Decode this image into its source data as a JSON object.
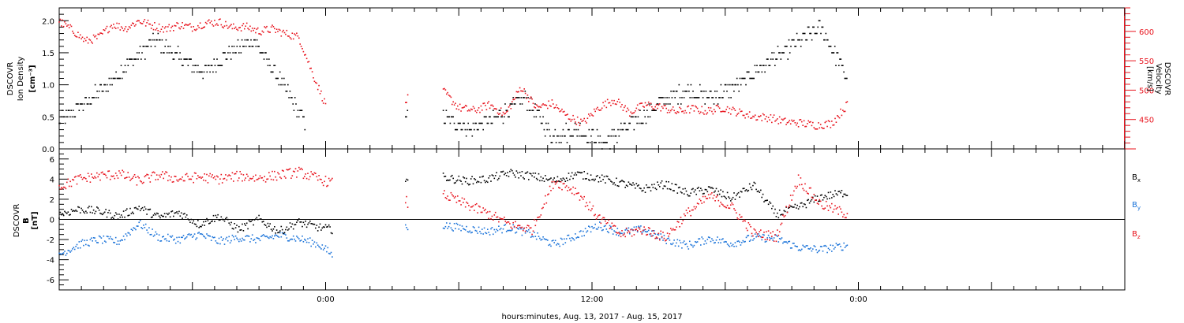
{
  "chart_data": [
    {
      "type": "scatter",
      "panel": "plasma",
      "ylabel_left": [
        "DSCOVR",
        "Ion Density",
        "[cm⁻³]"
      ],
      "ylabel_right": [
        "DSCOVR",
        "Velocity",
        "[km/s]"
      ],
      "ylim_left": [
        0.0,
        2.2
      ],
      "yticks_left": [
        "0.0",
        "0.5",
        "1.0",
        "1.5",
        "2.0"
      ],
      "ylim_right": [
        400,
        640
      ],
      "yticks_right": [
        "450",
        "500",
        "550",
        "600"
      ],
      "series": [
        {
          "name": "Ion Density",
          "axis": "left",
          "color": "#000000",
          "segments": [
            {
              "x": [
                0,
                1.1,
                2.2,
                3.3,
                4.4,
                5.5,
                6.6,
                7.7,
                8.8,
                9.9,
                11.1
              ],
              "y": [
                0.4,
                0.7,
                1.0,
                1.4,
                1.7,
                1.4,
                1.2,
                1.5,
                1.7,
                1.1,
                0.4
              ]
            },
            {
              "x": [
                15.6,
                15.7
              ],
              "y": [
                0.6,
                0.5
              ]
            },
            {
              "x": [
                17.3,
                18.5,
                19.8,
                21.0,
                22.2,
                23.4,
                24.6,
                25.8,
                27.0,
                28.2,
                29.4,
                30.6,
                31.8,
                33.0,
                34.3,
                35.5
              ],
              "y": [
                0.5,
                0.3,
                0.5,
                0.8,
                0.2,
                0.3,
                0.1,
                0.4,
                0.7,
                0.9,
                0.8,
                1.0,
                1.3,
                1.6,
                1.9,
                1.1
              ]
            }
          ]
        },
        {
          "name": "Velocity",
          "axis": "right",
          "color": "#e8141e",
          "segments": [
            {
              "x": [
                0,
                0.6,
                1.2,
                1.8,
                2.4,
                3.0,
                3.6,
                4.2,
                4.8,
                5.4,
                6.0,
                6.6,
                7.2,
                7.8,
                8.4,
                9.0,
                9.6,
                10.2,
                10.8,
                11.4,
                12.0
              ],
              "y": [
                617,
                602,
                583,
                590,
                612,
                605,
                618,
                610,
                604,
                611,
                607,
                614,
                616,
                606,
                608,
                600,
                604,
                596,
                590,
                530,
                475
              ]
            },
            {
              "x": [
                15.6,
                15.7
              ],
              "y": [
                480,
                485
              ]
            },
            {
              "x": [
                17.3,
                18.0,
                18.7,
                19.4,
                20.1,
                20.8,
                21.5,
                22.2,
                22.9,
                23.6,
                24.3,
                25.0,
                25.7,
                26.4,
                27.1,
                27.8,
                28.5,
                29.2,
                29.9,
                30.6,
                31.3,
                32.0,
                32.7,
                33.4,
                34.1,
                34.8,
                35.5
              ],
              "y": [
                498,
                470,
                465,
                475,
                458,
                505,
                470,
                477,
                455,
                444,
                470,
                484,
                462,
                475,
                471,
                463,
                468,
                464,
                470,
                462,
                455,
                453,
                446,
                444,
                440,
                443,
                475
              ]
            }
          ]
        }
      ]
    },
    {
      "type": "scatter",
      "panel": "magnetic-field",
      "ylabel_left": [
        "DSCOVR",
        "B",
        "[nT]"
      ],
      "ylim": [
        -7,
        7
      ],
      "yticks": [
        "-6",
        "-4",
        "-2",
        "0",
        "2",
        "4",
        "6"
      ],
      "zero_line": true,
      "legend": [
        "Bx",
        "By",
        "Bz"
      ],
      "legend_placement": "right",
      "series": [
        {
          "name": "Bx",
          "color": "#000000",
          "segments": [
            {
              "x": [
                0,
                0.9,
                1.8,
                2.7,
                3.6,
                4.5,
                5.4,
                6.3,
                7.2,
                8.1,
                9.0,
                9.9,
                10.8,
                11.7,
                12.3
              ],
              "y": [
                0.5,
                1.0,
                0.8,
                0.3,
                1.2,
                0.2,
                0.7,
                -0.5,
                0.3,
                -1.0,
                0.0,
                -1.2,
                -0.3,
                -0.8,
                -1.0
              ]
            },
            {
              "x": [
                15.6,
                15.7
              ],
              "y": [
                4.0,
                3.9
              ]
            },
            {
              "x": [
                17.3,
                18.3,
                19.3,
                20.3,
                21.3,
                22.3,
                23.3,
                24.3,
                25.3,
                26.3,
                27.3,
                28.3,
                29.3,
                30.3,
                31.3,
                32.3,
                33.3,
                34.3,
                35.5
              ],
              "y": [
                4.2,
                3.8,
                4.0,
                4.6,
                4.3,
                3.8,
                4.5,
                4.1,
                3.6,
                3.0,
                3.5,
                2.6,
                3.0,
                2.1,
                3.4,
                0.5,
                1.2,
                2.2,
                2.7
              ]
            }
          ]
        },
        {
          "name": "By",
          "color": "#1a73d9",
          "segments": [
            {
              "x": [
                0,
                0.9,
                1.8,
                2.7,
                3.6,
                4.5,
                5.4,
                6.3,
                7.2,
                8.1,
                9.0,
                9.9,
                10.8,
                11.7,
                12.3
              ],
              "y": [
                -3.5,
                -2.5,
                -2.0,
                -2.2,
                -0.4,
                -1.8,
                -2.0,
                -1.5,
                -2.2,
                -1.8,
                -2.0,
                -1.6,
                -1.9,
                -2.5,
                -3.5
              ]
            },
            {
              "x": [
                15.6,
                15.7
              ],
              "y": [
                -0.8,
                -0.7
              ]
            },
            {
              "x": [
                17.3,
                18.3,
                19.3,
                20.3,
                21.3,
                22.3,
                23.3,
                24.3,
                25.3,
                26.3,
                27.3,
                28.3,
                29.3,
                30.3,
                31.3,
                32.3,
                33.3,
                34.3,
                35.5
              ],
              "y": [
                -0.6,
                -0.9,
                -1.2,
                -0.8,
                -1.5,
                -2.5,
                -1.6,
                -0.6,
                -1.3,
                -1.0,
                -2.0,
                -2.6,
                -1.9,
                -2.4,
                -1.8,
                -1.9,
                -2.8,
                -3.0,
                -2.6
              ]
            }
          ]
        },
        {
          "name": "Bz",
          "color": "#e8141e",
          "segments": [
            {
              "x": [
                0,
                0.9,
                1.8,
                2.7,
                3.6,
                4.5,
                5.4,
                6.3,
                7.2,
                8.1,
                9.0,
                9.9,
                10.8,
                11.7,
                12.3
              ],
              "y": [
                3.2,
                4.0,
                4.3,
                4.5,
                3.8,
                4.4,
                4.0,
                4.2,
                4.0,
                4.3,
                4.1,
                4.4,
                4.7,
                4.0,
                3.6
              ]
            },
            {
              "x": [
                15.6,
                15.7
              ],
              "y": [
                2.0,
                1.6
              ]
            },
            {
              "x": [
                17.3,
                18.3,
                19.3,
                20.3,
                21.3,
                22.3,
                23.3,
                24.3,
                25.3,
                26.3,
                27.3,
                28.3,
                29.3,
                30.3,
                31.3,
                32.3,
                33.3,
                34.3,
                35.5
              ],
              "y": [
                2.5,
                1.5,
                0.6,
                -0.5,
                -1.0,
                3.8,
                2.8,
                0.2,
                -1.5,
                -1.0,
                -1.8,
                0.6,
                2.3,
                1.2,
                -1.4,
                -1.7,
                4.0,
                1.5,
                0.5
              ]
            }
          ]
        }
      ]
    }
  ],
  "xaxis": {
    "label": "hours:minutes, Aug. 13, 2017 - Aug. 15, 2017",
    "unit": "hours",
    "range": [
      0,
      48
    ],
    "major_ticks": [
      {
        "x": 12,
        "label": "0:00"
      },
      {
        "x": 24,
        "label": "12:00"
      },
      {
        "x": 36,
        "label": "0:00"
      }
    ]
  },
  "legend_labels": [
    {
      "main": "B",
      "sub": "x",
      "color": "#000000"
    },
    {
      "main": "B",
      "sub": "y",
      "color": "#1a73d9"
    },
    {
      "main": "B",
      "sub": "z",
      "color": "#e8141e"
    }
  ]
}
